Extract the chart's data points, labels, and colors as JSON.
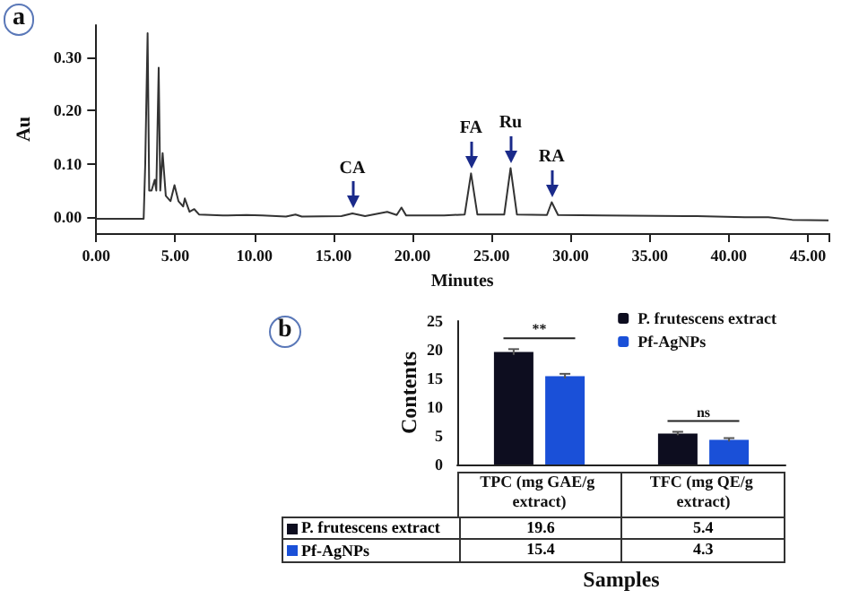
{
  "chart_data": [
    {
      "type": "line",
      "title": "a",
      "xlabel": "Minutes",
      "ylabel": "Au",
      "color": "#333333",
      "x": [
        0,
        3.0,
        3.1,
        3.25,
        3.35,
        3.5,
        3.7,
        3.8,
        3.95,
        4.05,
        4.2,
        4.4,
        4.7,
        4.95,
        5.2,
        5.5,
        5.6,
        5.9,
        6.2,
        6.5,
        8,
        9.5,
        10.5,
        12,
        12.6,
        13,
        15.5,
        16.2,
        17,
        18.4,
        19,
        19.3,
        19.6,
        22,
        23.3,
        23.7,
        24.1,
        25.8,
        26.2,
        26.6,
        28.5,
        28.8,
        29.2,
        32,
        38,
        41,
        42.5,
        44,
        46.3
      ],
      "values": [
        -0.003,
        -0.003,
        0.1,
        0.345,
        0.05,
        0.05,
        0.07,
        0.05,
        0.28,
        0.05,
        0.12,
        0.04,
        0.03,
        0.06,
        0.03,
        0.02,
        0.035,
        0.01,
        0.015,
        0.005,
        0.003,
        0.004,
        0.003,
        0.001,
        0.005,
        0.001,
        0.002,
        0.007,
        0.002,
        0.01,
        0.004,
        0.018,
        0.003,
        0.003,
        0.005,
        0.082,
        0.005,
        0.005,
        0.092,
        0.005,
        0.004,
        0.028,
        0.004,
        0.003,
        0.002,
        0.0,
        0.0,
        -0.005,
        -0.006
      ],
      "xlim": [
        0,
        46.3
      ],
      "ylim": [
        -0.03,
        0.36
      ],
      "xticks": [
        {
          "value": 0,
          "label": "0.00"
        },
        {
          "value": 5,
          "label": "5.00"
        },
        {
          "value": 10,
          "label": "10.00"
        },
        {
          "value": 15,
          "label": "15.00"
        },
        {
          "value": 20,
          "label": "20.00"
        },
        {
          "value": 25,
          "label": "25.00"
        },
        {
          "value": 30,
          "label": "30.00"
        },
        {
          "value": 35,
          "label": "35.00"
        },
        {
          "value": 40,
          "label": "40.00"
        },
        {
          "value": 45,
          "label": "45.00"
        }
      ],
      "yticks": [
        {
          "value": 0,
          "label": "0.00"
        },
        {
          "value": 0.1,
          "label": "0.10"
        },
        {
          "value": 0.2,
          "label": "0.20"
        },
        {
          "value": 0.3,
          "label": "0.30"
        }
      ],
      "annotations": [
        {
          "text": "CA",
          "x": 16.2,
          "y": 0.007
        },
        {
          "text": "FA",
          "x": 23.7,
          "y": 0.082
        },
        {
          "text": "Ru",
          "x": 26.2,
          "y": 0.092
        },
        {
          "text": "RA",
          "x": 28.8,
          "y": 0.028
        }
      ]
    },
    {
      "type": "bar",
      "title": "b",
      "xlabel": "Samples",
      "ylabel": "Contents",
      "categories": [
        "TPC (mg GAE/g extract)",
        "TFC (mg QE/g extract)"
      ],
      "series": [
        {
          "name": "P. frutescens extract",
          "color": "#0d0d1f",
          "values": [
            19.6,
            5.4
          ],
          "errors": [
            0.5,
            0.3
          ]
        },
        {
          "name": "Pf-AgNPs",
          "color": "#1a50d8",
          "values": [
            15.4,
            4.3
          ],
          "errors": [
            0.4,
            0.3
          ]
        }
      ],
      "ylim": [
        0,
        25
      ],
      "yticks": [
        0,
        5,
        10,
        15,
        20,
        25
      ],
      "legend": "top right",
      "data_labels": true,
      "annotations": [
        "**",
        "ns"
      ]
    }
  ]
}
